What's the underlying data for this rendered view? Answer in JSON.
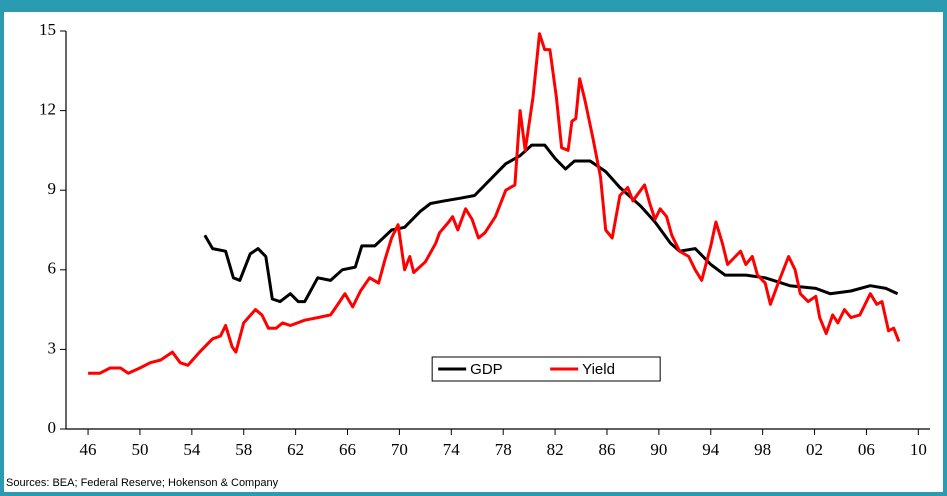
{
  "chart_data": {
    "type": "line",
    "source": "Sources: BEA; Federal Reserve; Hokenson & Company",
    "xlim": [
      1944.3,
      2010.9
    ],
    "ylim": [
      0,
      15
    ],
    "yticks": [
      0,
      3,
      6,
      9,
      12,
      15
    ],
    "xticks": [
      {
        "value": 1946,
        "label": "46"
      },
      {
        "value": 1950,
        "label": "50"
      },
      {
        "value": 1954,
        "label": "54"
      },
      {
        "value": 1958,
        "label": "58"
      },
      {
        "value": 1962,
        "label": "62"
      },
      {
        "value": 1966,
        "label": "66"
      },
      {
        "value": 1970,
        "label": "70"
      },
      {
        "value": 1974,
        "label": "74"
      },
      {
        "value": 1978,
        "label": "78"
      },
      {
        "value": 1982,
        "label": "82"
      },
      {
        "value": 1986,
        "label": "86"
      },
      {
        "value": 1990,
        "label": "90"
      },
      {
        "value": 1994,
        "label": "94"
      },
      {
        "value": 1998,
        "label": "98"
      },
      {
        "value": 2002,
        "label": "02"
      },
      {
        "value": 2006,
        "label": "06"
      },
      {
        "value": 2010,
        "label": "10"
      }
    ],
    "grid": false,
    "legend": "lower center",
    "series": [
      {
        "name": "GDP",
        "color": "#000000",
        "x": [
          1955.0,
          1955.6,
          1956.6,
          1957.2,
          1957.7,
          1958.5,
          1959.1,
          1959.7,
          1960.2,
          1960.8,
          1961.6,
          1962.2,
          1962.7,
          1963.7,
          1964.7,
          1965.6,
          1966.6,
          1967.1,
          1968.1,
          1969.4,
          1970.4,
          1971.6,
          1972.4,
          1973.5,
          1974.7,
          1975.8,
          1977.0,
          1978.2,
          1979.3,
          1980.2,
          1981.2,
          1982.0,
          1982.8,
          1983.5,
          1984.7,
          1985.9,
          1987.0,
          1988.6,
          1989.7,
          1990.9,
          1991.6,
          1992.8,
          1994.0,
          1995.1,
          1996.7,
          1998.2,
          2000.1,
          2002.1,
          2003.2,
          2004.8,
          2006.3,
          2007.5,
          2008.4
        ],
        "values": [
          7.3,
          6.8,
          6.7,
          5.7,
          5.6,
          6.6,
          6.8,
          6.5,
          4.9,
          4.8,
          5.1,
          4.8,
          4.8,
          5.7,
          5.6,
          6.0,
          6.1,
          6.9,
          6.9,
          7.5,
          7.6,
          8.2,
          8.5,
          8.6,
          8.7,
          8.8,
          9.4,
          10.0,
          10.3,
          10.7,
          10.7,
          10.2,
          9.8,
          10.1,
          10.1,
          9.7,
          9.1,
          8.4,
          7.8,
          7.0,
          6.7,
          6.8,
          6.2,
          5.8,
          5.8,
          5.7,
          5.4,
          5.3,
          5.1,
          5.2,
          5.4,
          5.3,
          5.1
        ]
      },
      {
        "name": "Yield",
        "color": "#ff0000",
        "x": [
          1946.0,
          1946.9,
          1947.7,
          1948.5,
          1949.1,
          1950.0,
          1950.8,
          1951.6,
          1952.5,
          1953.1,
          1953.7,
          1954.6,
          1955.6,
          1956.2,
          1956.6,
          1957.1,
          1957.4,
          1958.0,
          1958.9,
          1959.4,
          1959.9,
          1960.5,
          1961.0,
          1961.6,
          1962.7,
          1963.7,
          1964.7,
          1965.4,
          1965.8,
          1966.4,
          1967.0,
          1967.7,
          1968.4,
          1968.9,
          1969.4,
          1969.9,
          1970.4,
          1970.8,
          1971.1,
          1972.0,
          1972.8,
          1973.1,
          1973.8,
          1974.1,
          1974.5,
          1975.1,
          1975.6,
          1976.1,
          1976.6,
          1977.4,
          1978.2,
          1978.9,
          1979.3,
          1979.7,
          1980.3,
          1980.8,
          1981.2,
          1981.6,
          1982.1,
          1982.5,
          1983.0,
          1983.3,
          1983.6,
          1983.9,
          1984.3,
          1984.9,
          1985.5,
          1985.9,
          1986.4,
          1987.0,
          1987.6,
          1988.0,
          1988.6,
          1988.9,
          1989.3,
          1989.7,
          1990.1,
          1990.6,
          1991.0,
          1991.6,
          1992.3,
          1992.8,
          1993.3,
          1994.0,
          1994.4,
          1994.9,
          1995.3,
          1995.9,
          1996.3,
          1996.7,
          1997.2,
          1997.6,
          1998.2,
          1998.6,
          1999.2,
          2000.0,
          2000.5,
          2000.9,
          2001.5,
          2002.1,
          2002.4,
          2002.9,
          2003.4,
          2003.8,
          2004.3,
          2004.8,
          2005.5,
          2006.3,
          2006.8,
          2007.2,
          2007.7,
          2008.1,
          2008.5
        ],
        "values": [
          2.1,
          2.1,
          2.3,
          2.3,
          2.1,
          2.3,
          2.5,
          2.6,
          2.9,
          2.5,
          2.4,
          2.9,
          3.4,
          3.5,
          3.9,
          3.1,
          2.9,
          4.0,
          4.5,
          4.3,
          3.8,
          3.8,
          4.0,
          3.9,
          4.1,
          4.2,
          4.3,
          4.8,
          5.1,
          4.6,
          5.2,
          5.7,
          5.5,
          6.4,
          7.2,
          7.7,
          6.0,
          6.5,
          5.9,
          6.3,
          7.0,
          7.4,
          7.8,
          8.0,
          7.5,
          8.3,
          7.9,
          7.2,
          7.4,
          8.0,
          9.0,
          9.2,
          12.0,
          10.5,
          12.5,
          14.9,
          14.3,
          14.3,
          12.5,
          10.6,
          10.5,
          11.6,
          11.7,
          13.2,
          12.4,
          11.0,
          9.5,
          7.5,
          7.2,
          8.8,
          9.1,
          8.6,
          9.0,
          9.2,
          8.5,
          7.9,
          8.3,
          8.0,
          7.3,
          6.7,
          6.5,
          6.0,
          5.6,
          6.9,
          7.8,
          7.0,
          6.2,
          6.5,
          6.7,
          6.2,
          6.5,
          5.8,
          5.5,
          4.7,
          5.5,
          6.5,
          6.0,
          5.1,
          4.8,
          5.0,
          4.2,
          3.6,
          4.3,
          4.0,
          4.5,
          4.2,
          4.3,
          5.1,
          4.7,
          4.8,
          3.7,
          3.8,
          3.3
        ]
      }
    ]
  }
}
